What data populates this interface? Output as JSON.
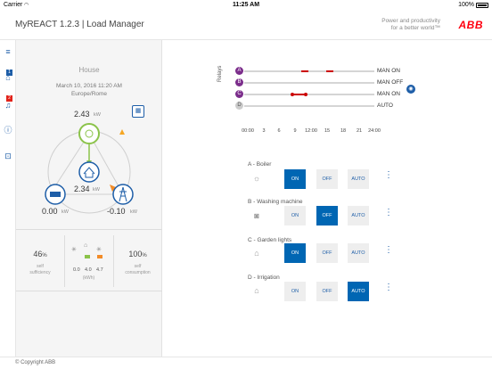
{
  "status_bar": {
    "carrier": "Carrier",
    "time": "11:25 AM",
    "battery": "100%"
  },
  "header": {
    "title": "MyREACT 1.2.3 | Load Manager",
    "tagline_line1": "Power and productivity",
    "tagline_line2": "for a better world™",
    "logo": "ABB"
  },
  "rail": {
    "badges": [
      "1",
      "2"
    ]
  },
  "house": {
    "title": "House",
    "date": "March 10, 2016 11:20 AM",
    "timezone": "Europe/Rome",
    "solar": {
      "value": "2.43",
      "unit": "kW"
    },
    "home": {
      "value": "2.34",
      "unit": "kW"
    },
    "battery": {
      "value": "0.00",
      "unit": "kW"
    },
    "grid": {
      "value": "-0.10",
      "unit": "kW"
    },
    "self_sufficiency": {
      "value": "46",
      "unit": "%",
      "label_line1": "self",
      "label_line2": "sufficiency"
    },
    "self_consumption": {
      "value": "100",
      "unit": "%",
      "label_line1": "self",
      "label_line2": "consumption"
    },
    "energy": {
      "values": [
        "0.0",
        "4.0",
        "4.7"
      ],
      "unit": "(kWh)"
    },
    "colors": {
      "solar": "#8bc34a",
      "home": "#1e5ea8",
      "grid_arrow": "#f28c28",
      "warning": "#f5a623"
    }
  },
  "relays": {
    "label": "Relays",
    "rows": [
      {
        "letter": "A",
        "status": "MAN ON",
        "color": "#7b2d8b"
      },
      {
        "letter": "B",
        "status": "MAN OFF",
        "color": "#7b2d8b"
      },
      {
        "letter": "C",
        "status": "MAN ON",
        "color": "#7b2d8b"
      },
      {
        "letter": "D",
        "status": "AUTO",
        "color": "#cccccc"
      }
    ],
    "timeline": [
      "00:00",
      "3",
      "6",
      "9",
      "12:00",
      "15",
      "18",
      "21",
      "24:00"
    ]
  },
  "devices": [
    {
      "name": "A - Boiler",
      "icon": "sun-icon",
      "active": "ON"
    },
    {
      "name": "B - Washing machine",
      "icon": "washing-machine-icon",
      "active": "OFF"
    },
    {
      "name": "C - Garden lights",
      "icon": "house-icon",
      "active": "ON"
    },
    {
      "name": "D - Irrigation",
      "icon": "house-icon",
      "active": "AUTO"
    }
  ],
  "buttons": {
    "on": "ON",
    "off": "OFF",
    "auto": "AUTO"
  },
  "footer": {
    "copyright": "© Copyright ABB"
  }
}
